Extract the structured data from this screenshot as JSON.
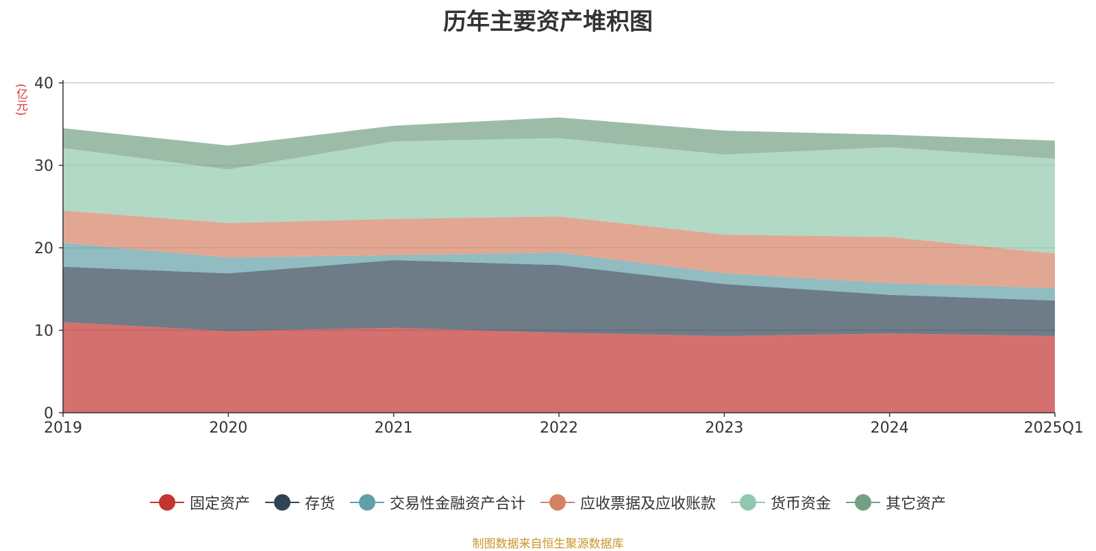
{
  "chart_data": {
    "type": "area",
    "stacked": true,
    "title": "历年主要资产堆积图",
    "ylabel": "(亿元)",
    "x": [
      "2019",
      "2020",
      "2021",
      "2022",
      "2023",
      "2024",
      "2025Q1"
    ],
    "ylim": [
      0,
      40
    ],
    "yticks": [
      "0",
      "10",
      "20",
      "30",
      "40"
    ],
    "grid": true,
    "legend_position": "bottom",
    "series": [
      {
        "name": "固定资产",
        "color": "#c23531",
        "values": [
          11.0,
          9.9,
          10.3,
          9.7,
          9.3,
          9.6,
          9.3
        ]
      },
      {
        "name": "存货",
        "color": "#2f4554",
        "values": [
          6.7,
          7.0,
          8.2,
          8.2,
          6.3,
          4.7,
          4.3
        ]
      },
      {
        "name": "交易性金融资产合计",
        "color": "#61a0a8",
        "values": [
          2.9,
          1.9,
          0.6,
          1.5,
          1.3,
          1.4,
          1.5
        ]
      },
      {
        "name": "应收票据及应收账款",
        "color": "#d48265",
        "values": [
          3.9,
          4.2,
          4.4,
          4.4,
          4.7,
          5.6,
          4.2
        ]
      },
      {
        "name": "货币资金",
        "color": "#91c7ae",
        "values": [
          7.6,
          6.5,
          9.4,
          9.5,
          9.7,
          10.9,
          11.5
        ]
      },
      {
        "name": "其它资产",
        "color": "#749f83",
        "values": [
          2.4,
          2.9,
          1.9,
          2.5,
          2.9,
          1.5,
          2.2
        ]
      }
    ],
    "source_note": "制图数据来自恒生聚源数据库"
  }
}
